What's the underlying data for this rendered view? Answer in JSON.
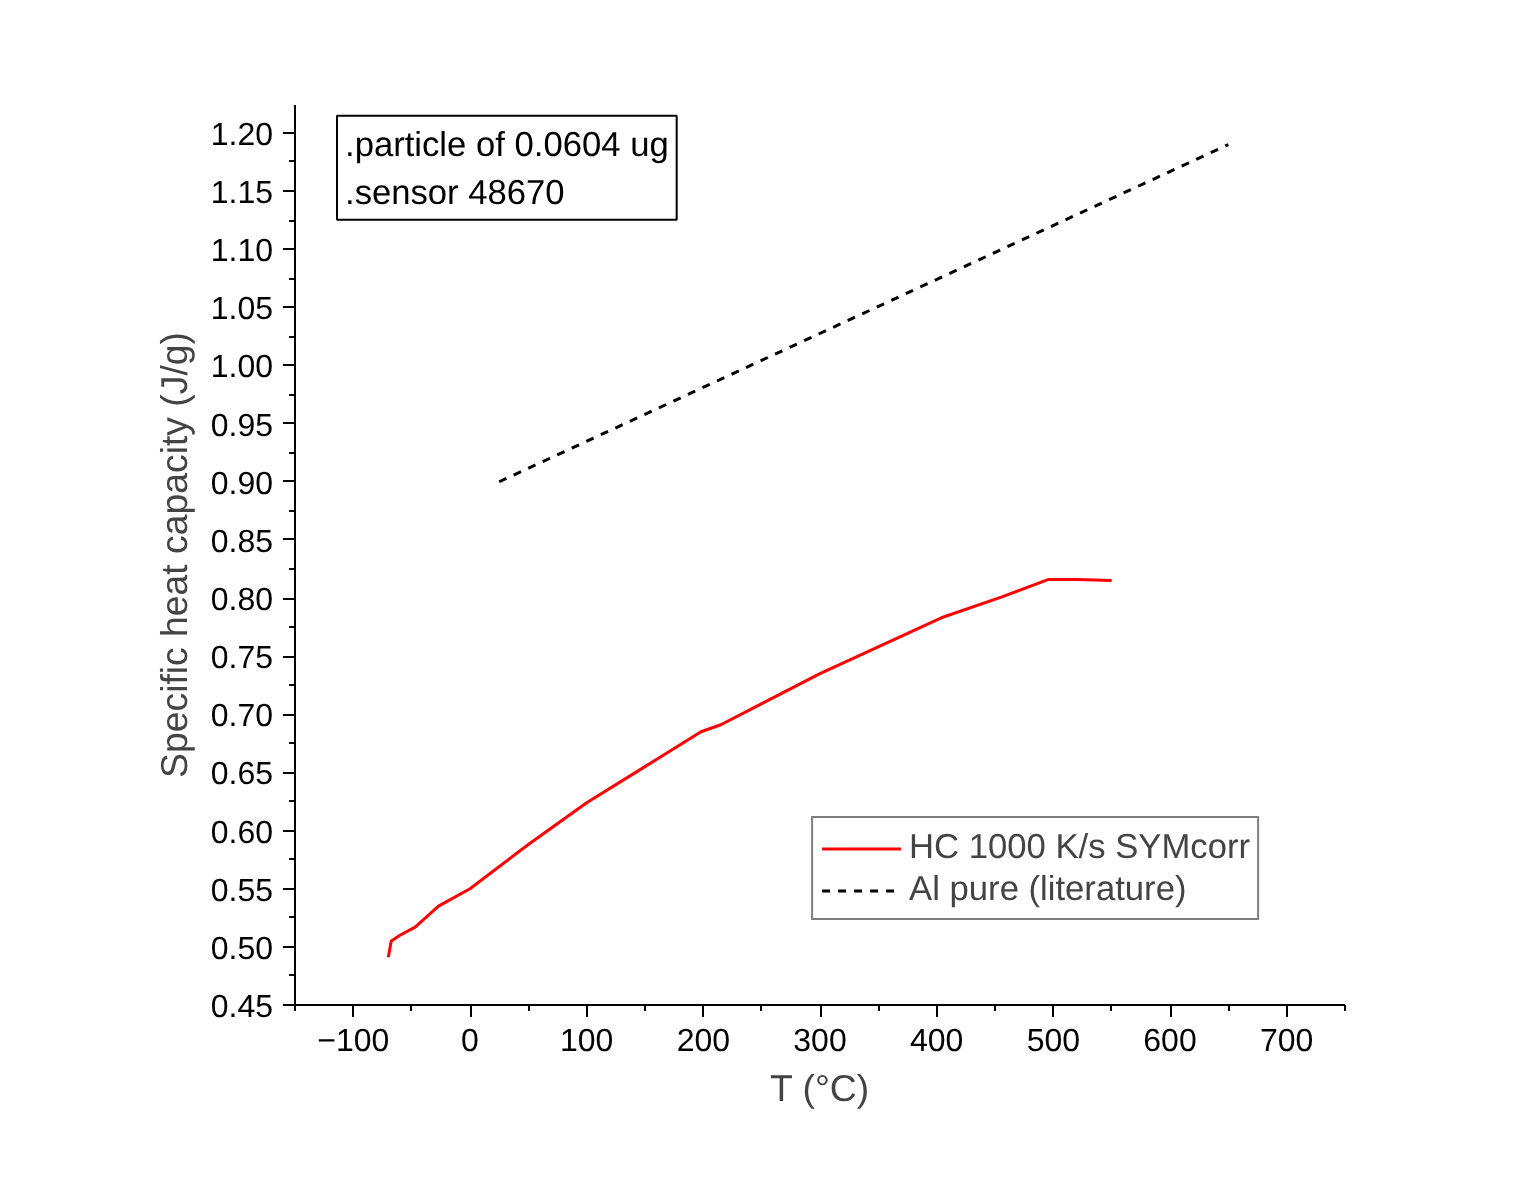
{
  "chart_data": {
    "type": "line",
    "xlabel": "T (°C)",
    "ylabel": "Specific heat capacity (J/g)",
    "xlim": [
      -150,
      750
    ],
    "xticks": [
      -100,
      0,
      100,
      200,
      300,
      400,
      500,
      600,
      700
    ],
    "ylim": [
      0.45,
      1.224
    ],
    "yticks": [
      {
        "value": 0.45,
        "label": "0.45"
      },
      {
        "value": 0.5,
        "label": "0.50"
      },
      {
        "value": 0.55,
        "label": "0.55"
      },
      {
        "value": 0.6,
        "label": "0.60"
      },
      {
        "value": 0.65,
        "label": "0.65"
      },
      {
        "value": 0.7,
        "label": "0.70"
      },
      {
        "value": 0.75,
        "label": "0.75"
      },
      {
        "value": 0.8,
        "label": "0.80"
      },
      {
        "value": 0.85,
        "label": "0.85"
      },
      {
        "value": 0.9,
        "label": "0.90"
      },
      {
        "value": 0.95,
        "label": "0.95"
      },
      {
        "value": 1.0,
        "label": "1.00"
      },
      {
        "value": 1.05,
        "label": "1.05"
      },
      {
        "value": 1.1,
        "label": "1.10"
      },
      {
        "value": 1.15,
        "label": "1.15"
      },
      {
        "value": 1.2,
        "label": "1.20"
      }
    ],
    "grid": false,
    "legend": "bottom right",
    "marker": "none",
    "annotations": [
      ".particle of 0.0604 ug",
      ".sensor 48670"
    ],
    "series": [
      {
        "name": "HC 1000 K/s SYMcorr",
        "color": "#ff0000",
        "line_style": "solid",
        "x": [
          -70,
          -67.5,
          -60,
          -47,
          -27,
          0,
          50,
          100,
          150,
          198,
          215,
          300,
          404,
          456,
          496,
          520,
          550
        ],
        "values": [
          0.491,
          0.505,
          0.51,
          0.517,
          0.535,
          0.55,
          0.588,
          0.624,
          0.655,
          0.685,
          0.691,
          0.735,
          0.783,
          0.801,
          0.816,
          0.816,
          0.815
        ]
      },
      {
        "name": "Al pure (literature)",
        "color": "#000000",
        "line_style": "dashed",
        "x": [
          25,
          650
        ],
        "values": [
          0.9,
          1.19
        ]
      }
    ]
  }
}
